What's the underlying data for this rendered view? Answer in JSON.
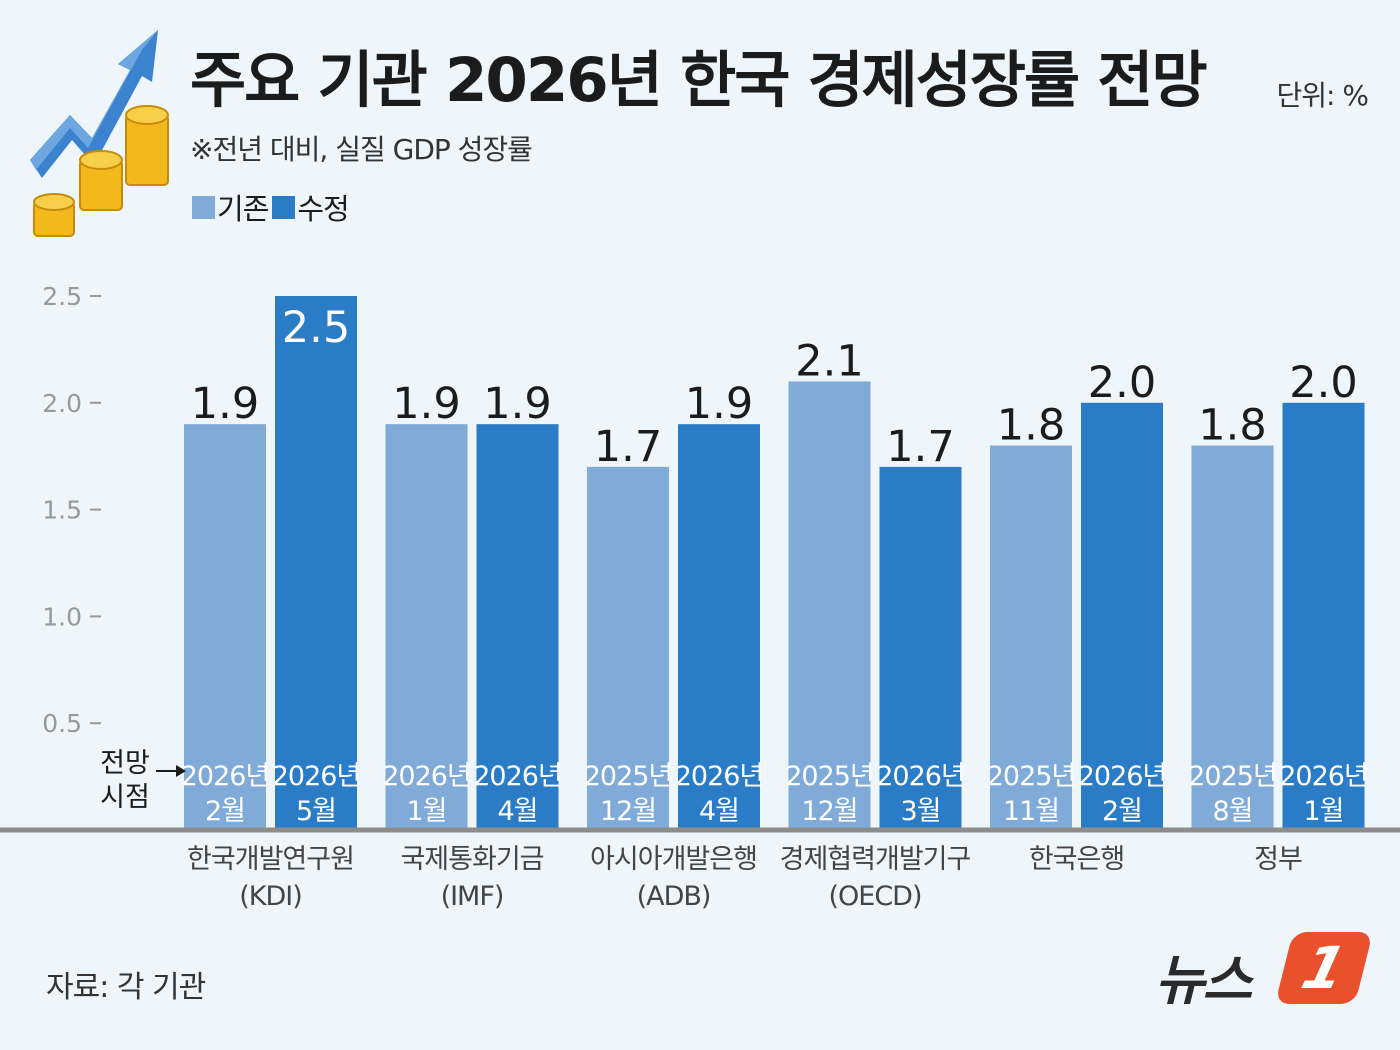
{
  "header": {
    "title": "주요 기관 2026년 한국 경제성장률 전망",
    "subtitle": "※전년 대비, 실질 GDP 성장률",
    "unit": "단위: %"
  },
  "legend": {
    "prior": "기존",
    "revised": "수정"
  },
  "colors": {
    "prior": "#80aad8",
    "revised": "#2b7cc6",
    "background": "#eef5fb"
  },
  "chart_data": {
    "type": "bar",
    "title": "주요 기관 2026년 한국 경제성장률 전망",
    "subtitle": "※전년 대비, 실질 GDP 성장률",
    "unit": "%",
    "ylim": [
      0,
      2.5
    ],
    "yticks": [
      "2.5",
      "2.0",
      "1.5",
      "1.0",
      "0.5"
    ],
    "grid": false,
    "legend_position": "top-left",
    "point_label": [
      "전망",
      "시점"
    ],
    "categories": [
      [
        "한국개발연구원",
        "(KDI)"
      ],
      [
        "국제통화기금",
        "(IMF)"
      ],
      [
        "아시아개발은행",
        "(ADB)"
      ],
      [
        "경제협력개발기구",
        "(OECD)"
      ],
      [
        "한국은행"
      ],
      [
        "정부"
      ]
    ],
    "series": [
      {
        "name": "기존",
        "values": [
          1.9,
          1.9,
          1.7,
          2.1,
          1.8,
          1.8
        ],
        "labels": [
          "1.9",
          "1.9",
          "1.7",
          "2.1",
          "1.8",
          "1.8"
        ],
        "periods": [
          [
            "2026년",
            "2월"
          ],
          [
            "2026년",
            "1월"
          ],
          [
            "2025년",
            "12월"
          ],
          [
            "2025년",
            "12월"
          ],
          [
            "2025년",
            "11월"
          ],
          [
            "2025년",
            "8월"
          ]
        ]
      },
      {
        "name": "수정",
        "values": [
          2.5,
          1.9,
          1.9,
          1.7,
          2.0,
          2.0
        ],
        "labels": [
          "2.5",
          "1.9",
          "1.9",
          "1.7",
          "2.0",
          "2.0"
        ],
        "periods": [
          [
            "2026년",
            "5월"
          ],
          [
            "2026년",
            "4월"
          ],
          [
            "2026년",
            "4월"
          ],
          [
            "2026년",
            "3월"
          ],
          [
            "2026년",
            "2월"
          ],
          [
            "2026년",
            "1월"
          ]
        ]
      }
    ]
  },
  "footer": {
    "source": "자료: 각 기관",
    "brand": "뉴스",
    "brand_mark": "1"
  }
}
